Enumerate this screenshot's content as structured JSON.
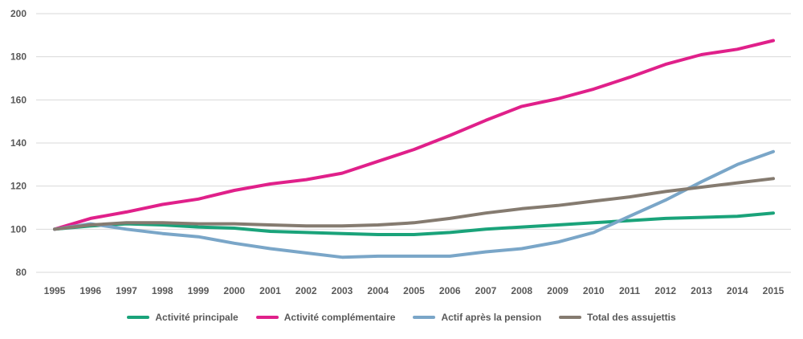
{
  "chart_data": {
    "type": "line",
    "title": "",
    "xlabel": "",
    "ylabel": "",
    "ylim": [
      80,
      200
    ],
    "yticks": [
      80,
      100,
      120,
      140,
      160,
      180,
      200
    ],
    "grid": true,
    "legend_position": "bottom",
    "x": [
      "1995",
      "1996",
      "1997",
      "1998",
      "1999",
      "2000",
      "2001",
      "2002",
      "2003",
      "2004",
      "2005",
      "2006",
      "2007",
      "2008",
      "2009",
      "2010",
      "2011",
      "2012",
      "2013",
      "2014",
      "2015"
    ],
    "series": [
      {
        "name": "Activité principale",
        "color": "#1aa37a",
        "values": [
          100,
          101.5,
          102.5,
          102,
          101,
          100.5,
          99,
          98.5,
          98,
          97.5,
          97.5,
          98.5,
          100,
          101,
          102,
          103,
          104,
          105,
          105.5,
          106,
          107.5
        ]
      },
      {
        "name": "Activité complémentaire",
        "color": "#e0208a",
        "values": [
          100,
          105,
          108,
          111.5,
          114,
          118,
          121,
          123,
          126,
          131.5,
          137,
          143.5,
          150.5,
          157,
          160.5,
          165,
          170.5,
          176.5,
          181,
          183.5,
          187.5
        ]
      },
      {
        "name": "Actif après la pension",
        "color": "#7aa6c8",
        "values": [
          100,
          102.5,
          100,
          98,
          96.5,
          93.5,
          91,
          89,
          87,
          87.5,
          87.5,
          87.5,
          89.5,
          91,
          94,
          98.5,
          106,
          113.5,
          122,
          130,
          136
        ]
      },
      {
        "name": "Total des assujettis",
        "color": "#857b70",
        "values": [
          100,
          102,
          103,
          103,
          102.5,
          102.5,
          102,
          101.5,
          101.5,
          102,
          103,
          105,
          107.5,
          109.5,
          111,
          113,
          115,
          117.5,
          119.5,
          121.5,
          123.5
        ]
      }
    ]
  }
}
